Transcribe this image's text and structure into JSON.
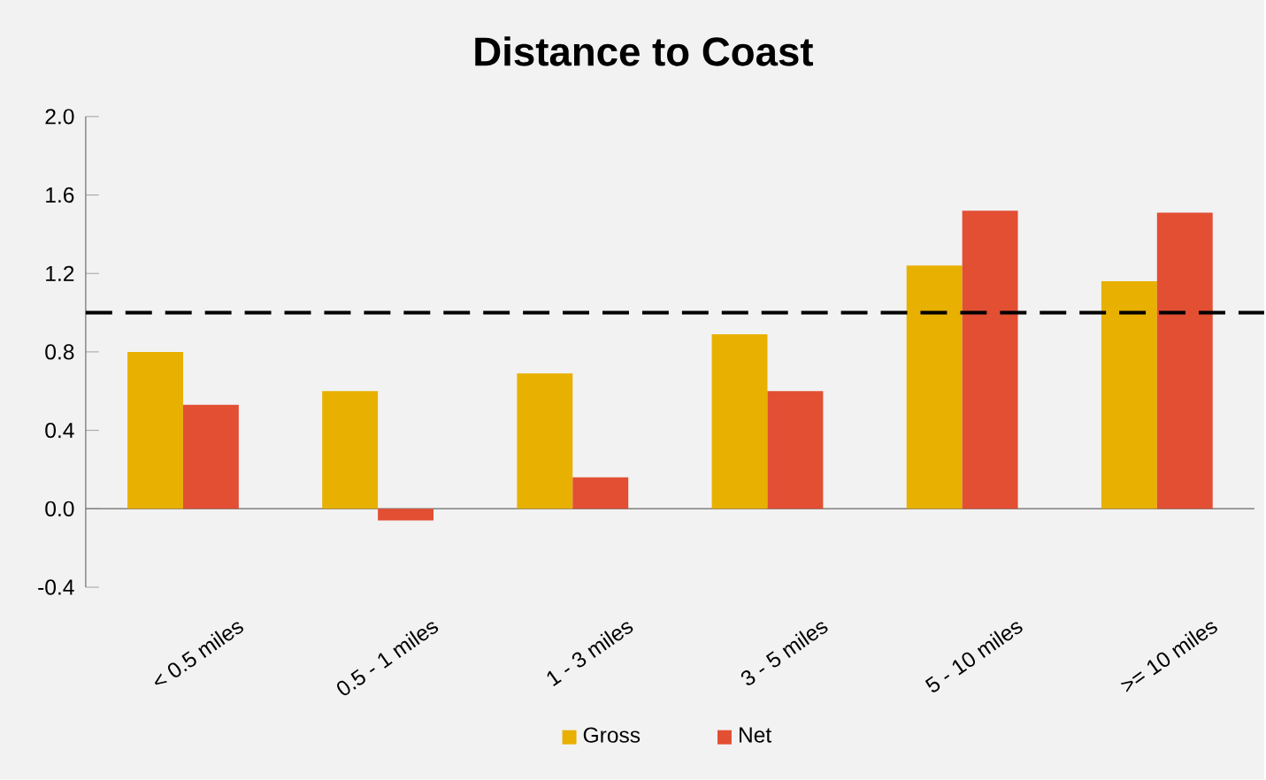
{
  "chart_data": {
    "type": "bar",
    "title": "Distance to Coast",
    "categories": [
      "< 0.5 miles",
      "0.5 - 1 miles",
      "1 - 3 miles",
      "3 - 5 miles",
      "5 - 10 miles",
      ">= 10 miles"
    ],
    "series": [
      {
        "name": "Gross",
        "color": "#e8b000",
        "values": [
          0.8,
          0.6,
          0.69,
          0.89,
          1.24,
          1.16
        ]
      },
      {
        "name": "Net",
        "color": "#e24f33",
        "values": [
          0.53,
          -0.06,
          0.16,
          0.6,
          1.52,
          1.51
        ]
      }
    ],
    "ylim": [
      -0.4,
      2.0
    ],
    "yticks": [
      {
        "value": -0.4,
        "label": "-0.4"
      },
      {
        "value": 0,
        "label": "0.0"
      },
      {
        "value": 0.4,
        "label": "0.4"
      },
      {
        "value": 0.8,
        "label": "0.8"
      },
      {
        "value": 1.2,
        "label": "1.2"
      },
      {
        "value": 1.6,
        "label": "1.6"
      },
      {
        "value": 2.0,
        "label": "2.0"
      }
    ],
    "ref_lines": [
      {
        "axis": "y",
        "value": 1.0,
        "color": "#000000",
        "line_style": "dashed"
      }
    ],
    "legend": "bottom"
  }
}
